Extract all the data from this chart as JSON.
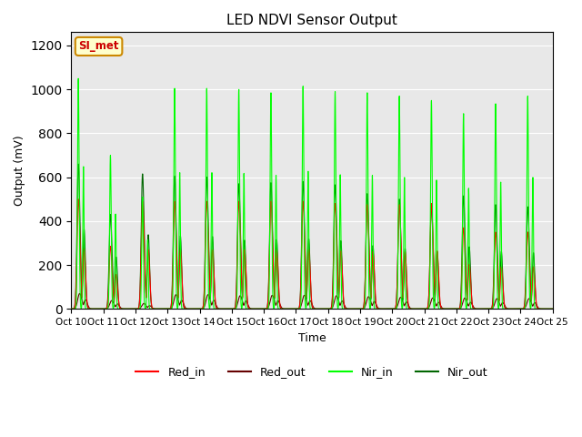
{
  "title": "LED NDVI Sensor Output",
  "xlabel": "Time",
  "ylabel": "Output (mV)",
  "ylim": [
    0,
    1260
  ],
  "yticks": [
    0,
    200,
    400,
    600,
    800,
    1000,
    1200
  ],
  "x_tick_labels": [
    "Oct 10",
    "Oct 11",
    "Oct 12",
    "Oct 13",
    "Oct 14",
    "Oct 15",
    "Oct 16",
    "Oct 17",
    "Oct 18",
    "Oct 19",
    "Oct 20",
    "Oct 21",
    "Oct 22",
    "Oct 23",
    "Oct 24",
    "Oct 25"
  ],
  "bg_color": "#e8e8e8",
  "plot_bg": "#d8d8d8",
  "grid_color": "white",
  "annotation_text": "SI_met",
  "annotation_bg": "#ffffcc",
  "annotation_border": "#cc8800",
  "annotation_text_color": "#cc0000",
  "colors": {
    "Red_in": "#ff0000",
    "Red_out": "#660000",
    "Nir_in": "#00ff00",
    "Nir_out": "#006600"
  },
  "nir_in_peaks": [
    1050,
    700,
    510,
    1005,
    1005,
    1000,
    985,
    1015,
    990,
    985,
    970,
    950,
    890,
    935,
    970
  ],
  "nir_out_peaks": [
    660,
    430,
    615,
    605,
    600,
    570,
    575,
    580,
    565,
    525,
    500,
    475,
    515,
    475,
    465
  ],
  "red_in_peaks": [
    500,
    285,
    490,
    490,
    490,
    490,
    490,
    490,
    480,
    475,
    475,
    480,
    370,
    350,
    350
  ],
  "red_out_peaks": [
    70,
    38,
    25,
    65,
    65,
    60,
    62,
    62,
    60,
    56,
    53,
    50,
    50,
    47,
    47
  ],
  "n_days": 15,
  "pts_per_day": 200
}
